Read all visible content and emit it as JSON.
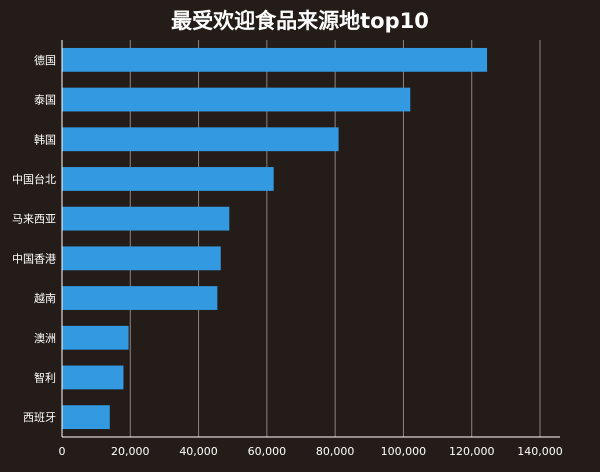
{
  "chart_data": {
    "type": "bar",
    "orientation": "horizontal",
    "title": "最受欢迎食品来源地top10",
    "xlabel": "",
    "ylabel": "",
    "categories": [
      "德国",
      "泰国",
      "韩国",
      "中国台北",
      "马来西亚",
      "中国香港",
      "越南",
      "澳洲",
      "智利",
      "西班牙"
    ],
    "values": [
      124500,
      102000,
      81000,
      62000,
      49000,
      46500,
      45500,
      19500,
      18000,
      14000
    ],
    "xlim": [
      0,
      140000
    ],
    "x_ticks": [
      "0",
      "20,000",
      "40,000",
      "60,000",
      "80,000",
      "100,000",
      "120,000",
      "140,000"
    ],
    "x_tick_values": [
      0,
      20000,
      40000,
      60000,
      80000,
      100000,
      120000,
      140000
    ],
    "grid": "vertical",
    "legend": "none",
    "colors": {
      "background": "#241c19",
      "bar": "#3399e0",
      "gridline": "#8a8480",
      "axis": "#ffffff",
      "text": "#ffffff"
    }
  }
}
